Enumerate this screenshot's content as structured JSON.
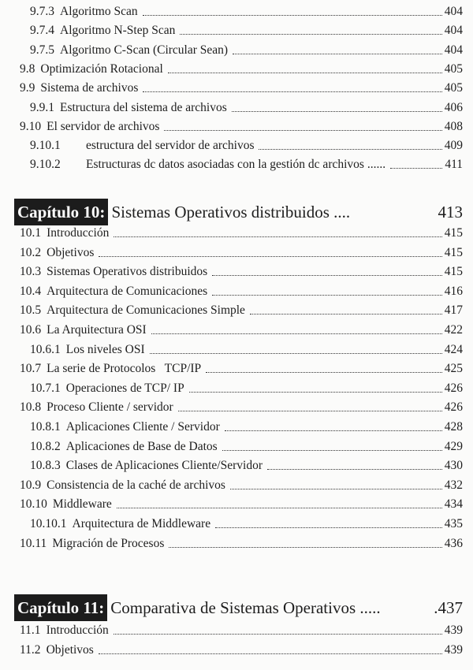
{
  "top_entries": [
    {
      "num": "9.7.3",
      "title": "Algoritmo Scan",
      "page": "404",
      "level": 3
    },
    {
      "num": "9.7.4",
      "title": "Algoritmo N-Step Scan",
      "page": "404",
      "level": 3
    },
    {
      "num": "9.7.5",
      "title": "Algoritmo C-Scan (Circular Sean)",
      "page": "404",
      "level": 3
    },
    {
      "num": "9.8",
      "title": "Optimización Rotacional",
      "page": "405",
      "level": 2
    },
    {
      "num": "9.9",
      "title": "Sistema de archivos",
      "page": "405",
      "level": 2
    },
    {
      "num": "9.9.1",
      "title": "Estructura del sistema de archivos",
      "page": "406",
      "level": 3
    },
    {
      "num": "9.10",
      "title": "El servidor de archivos",
      "page": "408",
      "level": 2
    },
    {
      "num": "9.10.1",
      "title": "estructura del servidor de archivos",
      "page": "409",
      "level": 4
    },
    {
      "num": "9.10.2",
      "title": "Estructuras dc datos asociadas con la gestión dc archivos ......",
      "page": "411",
      "level": 4
    }
  ],
  "chapters": [
    {
      "label": "Capítulo 10:",
      "title": "Sistemas Operativos distribuidos ....",
      "page": "413",
      "entries": [
        {
          "num": "10.1",
          "title": "Introducción",
          "page": "415",
          "level": 2
        },
        {
          "num": "10.2",
          "title": "Objetivos",
          "page": "415",
          "level": 2
        },
        {
          "num": "10.3",
          "title": "Sistemas Operativos distribuidos",
          "page": "415",
          "level": 2
        },
        {
          "num": "10.4",
          "title": "Arquitectura de Comunicaciones",
          "page": "416",
          "level": 2
        },
        {
          "num": "10.5",
          "title": "Arquitectura de Comunicaciones Simple",
          "page": "417",
          "level": 2
        },
        {
          "num": "10.6",
          "title": "La Arquitectura OSI",
          "page": "422",
          "level": 2
        },
        {
          "num": "10.6.1",
          "title": "Los niveles OSI",
          "page": "424",
          "level": 3
        },
        {
          "num": "10.7",
          "title": "La serie de Protocolos   TCP/IP",
          "page": "425",
          "level": 2
        },
        {
          "num": "10.7.1",
          "title": "Operaciones de TCP/ IP",
          "page": "426",
          "level": 3
        },
        {
          "num": "10.8",
          "title": "Proceso Cliente / servidor",
          "page": "426",
          "level": 2
        },
        {
          "num": "10.8.1",
          "title": "Aplicaciones Cliente / Servidor",
          "page": "428",
          "level": 3
        },
        {
          "num": "10.8.2",
          "title": "Aplicaciones de Base de Datos",
          "page": "429",
          "level": 3
        },
        {
          "num": "10.8.3",
          "title": "Clases de Aplicaciones Cliente/Servidor",
          "page": "430",
          "level": 3
        },
        {
          "num": "10.9",
          "title": "Consistencia de la caché de archivos",
          "page": "432",
          "level": 2
        },
        {
          "num": "10.10",
          "title": "Middleware",
          "page": "434",
          "level": 2
        },
        {
          "num": "10.10.1",
          "title": "Arquitectura de Middleware",
          "page": "435",
          "level": 3
        },
        {
          "num": "10.11",
          "title": "Migración de Procesos",
          "page": "436",
          "level": 2
        }
      ]
    },
    {
      "label": "Capítulo 11:",
      "title": "Comparativa de Sistemas Operativos .....",
      "page": ".437",
      "entries": [
        {
          "num": "11.1",
          "title": "Introducción",
          "page": "439",
          "level": 2
        },
        {
          "num": "11.2",
          "title": "Objetivos",
          "page": "439",
          "level": 2
        }
      ]
    }
  ]
}
